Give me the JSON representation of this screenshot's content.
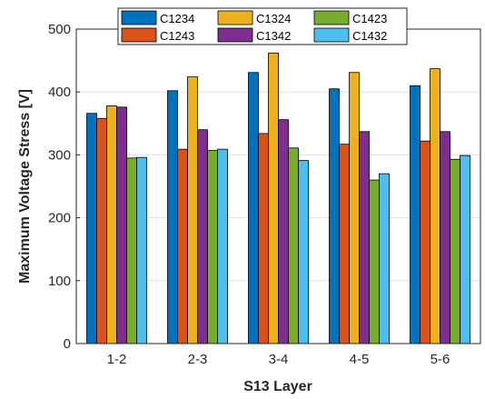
{
  "chart_data": {
    "type": "bar",
    "title": "",
    "xlabel": "S13 Layer",
    "ylabel": "Maximum Voltage Stress [V]",
    "categories": [
      "1-2",
      "2-3",
      "3-4",
      "4-5",
      "5-6"
    ],
    "ylim": [
      0,
      500
    ],
    "yticks": [
      0,
      100,
      200,
      300,
      400,
      500
    ],
    "grid": true,
    "legend_position": "top-center",
    "series": [
      {
        "name": "C1234",
        "color": "#0072BD",
        "values": [
          366,
          402,
          431,
          405,
          410
        ]
      },
      {
        "name": "C1243",
        "color": "#D95319",
        "values": [
          358,
          309,
          334,
          317,
          322
        ]
      },
      {
        "name": "C1324",
        "color": "#EDB120",
        "values": [
          378,
          424,
          462,
          431,
          437
        ]
      },
      {
        "name": "C1342",
        "color": "#7E2F8E",
        "values": [
          376,
          340,
          356,
          337,
          337
        ]
      },
      {
        "name": "C1423",
        "color": "#77AC30",
        "values": [
          295,
          307,
          311,
          260,
          293
        ]
      },
      {
        "name": "C1432",
        "color": "#4DBEEE",
        "values": [
          296,
          309,
          291,
          270,
          299
        ]
      }
    ]
  }
}
